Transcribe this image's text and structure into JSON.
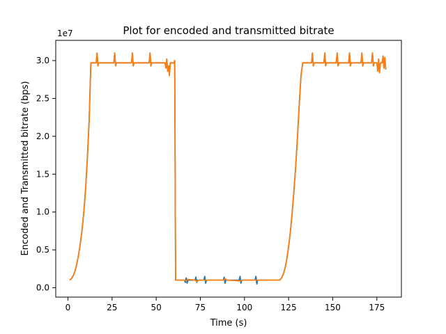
{
  "chart_data": {
    "type": "line",
    "title": "Plot for encoded and transmitted bitrate",
    "xlabel": "Time (s)",
    "ylabel": "Encoded and Transmitted bitrate (bps)",
    "y_multiplier_label": "1e7",
    "xlim": [
      -6.9,
      188.9
    ],
    "ylim": [
      -1.24,
      32.67
    ],
    "x_ticks": [
      {
        "value": 0,
        "label": "0"
      },
      {
        "value": 25,
        "label": "25"
      },
      {
        "value": 50,
        "label": "50"
      },
      {
        "value": 75,
        "label": "75"
      },
      {
        "value": 100,
        "label": "100"
      },
      {
        "value": 125,
        "label": "125"
      },
      {
        "value": 150,
        "label": "150"
      },
      {
        "value": 175,
        "label": "175"
      }
    ],
    "y_ticks": [
      {
        "value": 0,
        "label": "0.0"
      },
      {
        "value": 5,
        "label": "0.5"
      },
      {
        "value": 10,
        "label": "1.0"
      },
      {
        "value": 15,
        "label": "1.5"
      },
      {
        "value": 20,
        "label": "2.0"
      },
      {
        "value": 25,
        "label": "2.5"
      },
      {
        "value": 30,
        "label": "3.0"
      }
    ],
    "grid": false,
    "legend": "none",
    "y_units_note": "values in units of 1e6 bps (axis shows x1e7)",
    "series": [
      {
        "color": "#1f77b4",
        "points": [
          [
            1,
            1.0
          ],
          [
            2,
            1.2
          ],
          [
            3,
            1.6
          ],
          [
            4,
            2.2
          ],
          [
            5,
            3.1
          ],
          [
            6,
            4.3
          ],
          [
            7,
            5.8
          ],
          [
            8,
            7.6
          ],
          [
            9,
            10.0
          ],
          [
            10,
            13.0
          ],
          [
            11,
            17.0
          ],
          [
            12,
            22.0
          ],
          [
            13,
            29.7
          ],
          [
            16,
            29.7
          ],
          [
            16.5,
            31.0
          ],
          [
            17,
            29.3
          ],
          [
            17.5,
            29.7
          ],
          [
            26,
            29.7
          ],
          [
            26.5,
            31.0
          ],
          [
            27,
            29.3
          ],
          [
            27.5,
            29.7
          ],
          [
            36,
            29.7
          ],
          [
            36.5,
            31.0
          ],
          [
            37,
            29.3
          ],
          [
            37.5,
            29.7
          ],
          [
            46,
            29.7
          ],
          [
            46.5,
            31.0
          ],
          [
            47,
            29.3
          ],
          [
            47.5,
            29.7
          ],
          [
            55,
            29.7
          ],
          [
            55.5,
            29.0
          ],
          [
            56,
            30.2
          ],
          [
            56.5,
            28.6
          ],
          [
            57,
            29.3
          ],
          [
            57.5,
            28.2
          ],
          [
            58,
            29.7
          ],
          [
            60,
            29.7
          ],
          [
            60.5,
            30.0
          ],
          [
            61,
            1.0
          ],
          [
            66,
            1.0
          ],
          [
            66.5,
            0.7
          ],
          [
            67,
            1.3
          ],
          [
            67.5,
            0.6
          ],
          [
            68,
            1.0
          ],
          [
            72,
            1.0
          ],
          [
            72.5,
            1.4
          ],
          [
            73,
            0.7
          ],
          [
            73.5,
            1.0
          ],
          [
            77,
            1.0
          ],
          [
            77.5,
            1.5
          ],
          [
            78,
            0.6
          ],
          [
            78.5,
            1.0
          ],
          [
            88,
            1.0
          ],
          [
            88.5,
            1.4
          ],
          [
            89,
            0.6
          ],
          [
            89.5,
            1.0
          ],
          [
            97,
            1.0
          ],
          [
            97.5,
            1.5
          ],
          [
            98,
            0.6
          ],
          [
            98.5,
            1.0
          ],
          [
            106,
            1.0
          ],
          [
            106.5,
            1.5
          ],
          [
            107,
            0.5
          ],
          [
            107.5,
            1.0
          ],
          [
            120,
            1.0
          ],
          [
            121,
            1.3
          ],
          [
            122,
            1.8
          ],
          [
            123,
            2.6
          ],
          [
            124,
            3.8
          ],
          [
            125,
            5.4
          ],
          [
            126,
            7.4
          ],
          [
            127,
            9.8
          ],
          [
            128,
            12.7
          ],
          [
            129,
            16.0
          ],
          [
            130,
            19.8
          ],
          [
            131,
            24.0
          ],
          [
            132,
            28.0
          ],
          [
            133,
            29.7
          ],
          [
            138,
            29.7
          ],
          [
            138.5,
            31.0
          ],
          [
            139,
            29.3
          ],
          [
            139.5,
            29.7
          ],
          [
            145,
            29.7
          ],
          [
            145.5,
            31.0
          ],
          [
            146,
            29.3
          ],
          [
            146.5,
            29.7
          ],
          [
            152,
            29.7
          ],
          [
            152.5,
            31.0
          ],
          [
            153,
            29.3
          ],
          [
            153.5,
            29.7
          ],
          [
            159,
            29.7
          ],
          [
            159.5,
            31.0
          ],
          [
            160,
            29.3
          ],
          [
            160.5,
            29.7
          ],
          [
            166,
            29.7
          ],
          [
            166.5,
            31.0
          ],
          [
            167,
            29.3
          ],
          [
            167.5,
            29.7
          ],
          [
            172,
            29.7
          ],
          [
            172.5,
            31.0
          ],
          [
            173,
            29.3
          ],
          [
            173.5,
            29.7
          ],
          [
            175,
            29.7
          ],
          [
            175.5,
            28.6
          ],
          [
            176,
            30.2
          ],
          [
            176.5,
            28.4
          ],
          [
            177,
            29.7
          ],
          [
            178,
            29.7
          ],
          [
            178.5,
            30.6
          ],
          [
            179,
            29.0
          ],
          [
            179.5,
            30.4
          ],
          [
            180,
            28.8
          ]
        ]
      },
      {
        "color": "#ff7f0e",
        "points": [
          [
            1,
            1.0
          ],
          [
            2,
            1.2
          ],
          [
            3,
            1.6
          ],
          [
            4,
            2.2
          ],
          [
            5,
            3.1
          ],
          [
            6,
            4.3
          ],
          [
            7,
            5.8
          ],
          [
            8,
            7.6
          ],
          [
            9,
            10.0
          ],
          [
            10,
            13.0
          ],
          [
            11,
            17.0
          ],
          [
            12,
            22.0
          ],
          [
            13,
            29.7
          ],
          [
            16,
            29.7
          ],
          [
            16.5,
            31.0
          ],
          [
            17,
            29.3
          ],
          [
            17.5,
            29.7
          ],
          [
            26,
            29.7
          ],
          [
            26.5,
            31.0
          ],
          [
            27,
            29.3
          ],
          [
            27.5,
            29.7
          ],
          [
            36,
            29.7
          ],
          [
            36.5,
            31.0
          ],
          [
            37,
            29.3
          ],
          [
            37.5,
            29.7
          ],
          [
            46,
            29.7
          ],
          [
            46.5,
            31.0
          ],
          [
            47,
            29.3
          ],
          [
            47.5,
            29.7
          ],
          [
            55,
            29.7
          ],
          [
            55.5,
            29.0
          ],
          [
            56,
            30.2
          ],
          [
            56.5,
            28.6
          ],
          [
            57,
            29.3
          ],
          [
            57.5,
            28.0
          ],
          [
            58,
            29.7
          ],
          [
            60,
            29.7
          ],
          [
            60.5,
            30.0
          ],
          [
            61,
            1.0
          ],
          [
            66,
            1.0
          ],
          [
            67,
            0.9
          ],
          [
            68,
            1.1
          ],
          [
            72,
            1.0
          ],
          [
            73,
            0.8
          ],
          [
            74,
            1.0
          ],
          [
            88,
            1.0
          ],
          [
            89,
            1.2
          ],
          [
            90,
            1.0
          ],
          [
            98,
            0.9
          ],
          [
            99,
            1.0
          ],
          [
            120,
            1.0
          ],
          [
            121,
            1.3
          ],
          [
            122,
            1.8
          ],
          [
            123,
            2.6
          ],
          [
            124,
            3.8
          ],
          [
            125,
            5.4
          ],
          [
            126,
            7.4
          ],
          [
            127,
            9.8
          ],
          [
            128,
            12.7
          ],
          [
            129,
            16.0
          ],
          [
            130,
            19.8
          ],
          [
            131,
            24.0
          ],
          [
            132,
            28.0
          ],
          [
            133,
            29.7
          ],
          [
            138,
            29.7
          ],
          [
            138.5,
            31.0
          ],
          [
            139,
            29.3
          ],
          [
            139.5,
            29.7
          ],
          [
            145,
            29.7
          ],
          [
            145.5,
            31.0
          ],
          [
            146,
            29.3
          ],
          [
            146.5,
            29.7
          ],
          [
            152,
            29.7
          ],
          [
            152.5,
            31.0
          ],
          [
            153,
            29.3
          ],
          [
            153.5,
            29.7
          ],
          [
            159,
            29.7
          ],
          [
            159.5,
            31.0
          ],
          [
            160,
            29.3
          ],
          [
            160.5,
            29.7
          ],
          [
            166,
            29.7
          ],
          [
            166.5,
            31.0
          ],
          [
            167,
            29.3
          ],
          [
            167.5,
            29.7
          ],
          [
            172,
            29.7
          ],
          [
            172.5,
            31.0
          ],
          [
            173,
            29.3
          ],
          [
            173.5,
            29.7
          ],
          [
            175,
            29.7
          ],
          [
            175.5,
            28.6
          ],
          [
            176,
            30.2
          ],
          [
            176.5,
            28.4
          ],
          [
            177,
            29.7
          ],
          [
            178,
            29.7
          ],
          [
            178.5,
            30.6
          ],
          [
            179,
            29.0
          ],
          [
            179.5,
            30.4
          ],
          [
            180,
            28.8
          ]
        ]
      }
    ]
  }
}
